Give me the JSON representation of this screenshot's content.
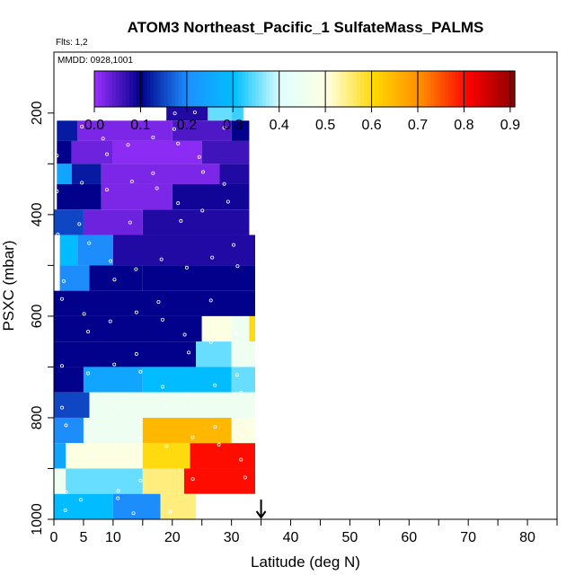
{
  "chart_data": {
    "type": "heatmap",
    "title": "ATOM3 Northeast_Pacific_1 SulfateMass_PALMS",
    "annotations": {
      "flights": "Flts: 1,2",
      "dates": "MMDD: 0928,1001"
    },
    "xlabel": "Latitude (deg N)",
    "ylabel": "PSXC (mbar)",
    "xlim": [
      0,
      85
    ],
    "ylim": [
      1000,
      80
    ],
    "x_ticks": [
      0,
      5,
      10,
      20,
      30,
      40,
      50,
      60,
      70,
      80
    ],
    "y_ticks": [
      200,
      400,
      600,
      800,
      1000
    ],
    "colorbar": {
      "ticks": [
        0.0,
        0.1,
        0.2,
        0.3,
        0.4,
        0.5,
        0.6,
        0.7,
        0.8,
        0.9
      ],
      "tick_labels": [
        "0.0",
        "0.1",
        "0.2",
        "0.3",
        "0.4",
        "0.5",
        "0.6",
        "0.7",
        "0.8",
        "0.9"
      ],
      "range": [
        0.0,
        0.91
      ],
      "colors": [
        "#9b30ff",
        "#00008b",
        "#1e90ff",
        "#00bfff",
        "#e0ffff",
        "#ffffe0",
        "#ffd700",
        "#ff8c00",
        "#ff0000",
        "#8b0000"
      ]
    },
    "arrow_marker_latitude": 35,
    "layers": [
      {
        "p_top": 180,
        "p_bot": 215,
        "lat_min": 19,
        "lat_max": 32,
        "segments": [
          [
            19,
            26,
            0.08
          ],
          [
            26,
            30,
            0.35
          ],
          [
            30,
            32,
            0.33
          ]
        ]
      },
      {
        "p_top": 215,
        "p_bot": 255,
        "lat_min": 0.5,
        "lat_max": 33,
        "segments": [
          [
            0.5,
            4,
            0.12
          ],
          [
            4,
            20,
            0.02
          ],
          [
            20,
            30,
            0.05
          ],
          [
            30,
            33,
            0.1
          ]
        ]
      },
      {
        "p_top": 255,
        "p_bot": 300,
        "lat_min": 0.5,
        "lat_max": 33,
        "segments": [
          [
            0.5,
            3,
            0.1
          ],
          [
            3,
            10,
            0.03
          ],
          [
            10,
            25,
            0.01
          ],
          [
            25,
            33,
            0.06
          ]
        ]
      },
      {
        "p_top": 300,
        "p_bot": 340,
        "lat_min": 0.5,
        "lat_max": 33,
        "segments": [
          [
            0.5,
            3,
            0.25
          ],
          [
            3,
            8,
            0.12
          ],
          [
            8,
            28,
            0.02
          ],
          [
            28,
            33,
            0.08
          ]
        ]
      },
      {
        "p_top": 340,
        "p_bot": 390,
        "lat_min": 0.5,
        "lat_max": 33,
        "segments": [
          [
            0.5,
            8,
            0.1
          ],
          [
            8,
            20,
            0.02
          ],
          [
            20,
            33,
            0.09
          ]
        ]
      },
      {
        "p_top": 390,
        "p_bot": 440,
        "lat_min": 0,
        "lat_max": 33,
        "segments": [
          [
            0,
            5,
            0.15
          ],
          [
            5,
            15,
            0.03
          ],
          [
            15,
            33,
            0.08
          ]
        ]
      },
      {
        "p_top": 440,
        "p_bot": 500,
        "lat_min": 1,
        "lat_max": 34,
        "segments": [
          [
            1,
            4,
            0.3
          ],
          [
            4,
            10,
            0.2
          ],
          [
            10,
            34,
            0.08
          ]
        ]
      },
      {
        "p_top": 500,
        "p_bot": 550,
        "lat_min": 1,
        "lat_max": 34,
        "segments": [
          [
            1,
            6,
            0.2
          ],
          [
            6,
            15,
            0.1
          ],
          [
            15,
            34,
            0.1
          ]
        ]
      },
      {
        "p_top": 550,
        "p_bot": 600,
        "lat_min": 0,
        "lat_max": 34,
        "segments": [
          [
            0,
            34,
            0.1
          ]
        ]
      },
      {
        "p_top": 600,
        "p_bot": 650,
        "lat_min": 0,
        "lat_max": 34,
        "segments": [
          [
            0,
            25,
            0.1
          ],
          [
            25,
            30,
            0.5
          ],
          [
            30,
            33,
            0.45
          ],
          [
            33,
            34,
            0.6
          ]
        ]
      },
      {
        "p_top": 650,
        "p_bot": 700,
        "lat_min": 0,
        "lat_max": 34,
        "segments": [
          [
            0,
            24,
            0.1
          ],
          [
            24,
            30,
            0.35
          ],
          [
            30,
            34,
            0.45
          ]
        ]
      },
      {
        "p_top": 700,
        "p_bot": 750,
        "lat_min": 0,
        "lat_max": 34,
        "segments": [
          [
            0,
            5,
            0.1
          ],
          [
            5,
            15,
            0.25
          ],
          [
            15,
            30,
            0.3
          ],
          [
            30,
            34,
            0.35
          ]
        ]
      },
      {
        "p_top": 750,
        "p_bot": 800,
        "lat_min": 0,
        "lat_max": 34,
        "segments": [
          [
            0,
            6,
            0.15
          ],
          [
            6,
            34,
            0.45
          ]
        ]
      },
      {
        "p_top": 800,
        "p_bot": 850,
        "lat_min": 0,
        "lat_max": 34,
        "segments": [
          [
            0,
            5,
            0.2
          ],
          [
            5,
            15,
            0.45
          ],
          [
            15,
            30,
            0.65
          ],
          [
            30,
            34,
            0.5
          ]
        ]
      },
      {
        "p_top": 850,
        "p_bot": 900,
        "lat_min": 0,
        "lat_max": 34,
        "segments": [
          [
            0,
            2,
            0.25
          ],
          [
            2,
            15,
            0.5
          ],
          [
            15,
            23,
            0.6
          ],
          [
            23,
            34,
            0.8
          ]
        ]
      },
      {
        "p_top": 900,
        "p_bot": 950,
        "lat_min": 0,
        "lat_max": 34,
        "segments": [
          [
            0,
            2,
            0.45
          ],
          [
            2,
            15,
            0.35
          ],
          [
            15,
            22,
            0.55
          ],
          [
            22,
            34,
            0.8
          ]
        ]
      },
      {
        "p_top": 950,
        "p_bot": 1000,
        "lat_min": 0,
        "lat_max": 24,
        "segments": [
          [
            0,
            10,
            0.3
          ],
          [
            10,
            18,
            0.2
          ],
          [
            18,
            24,
            0.55
          ]
        ]
      }
    ],
    "grid": false
  }
}
